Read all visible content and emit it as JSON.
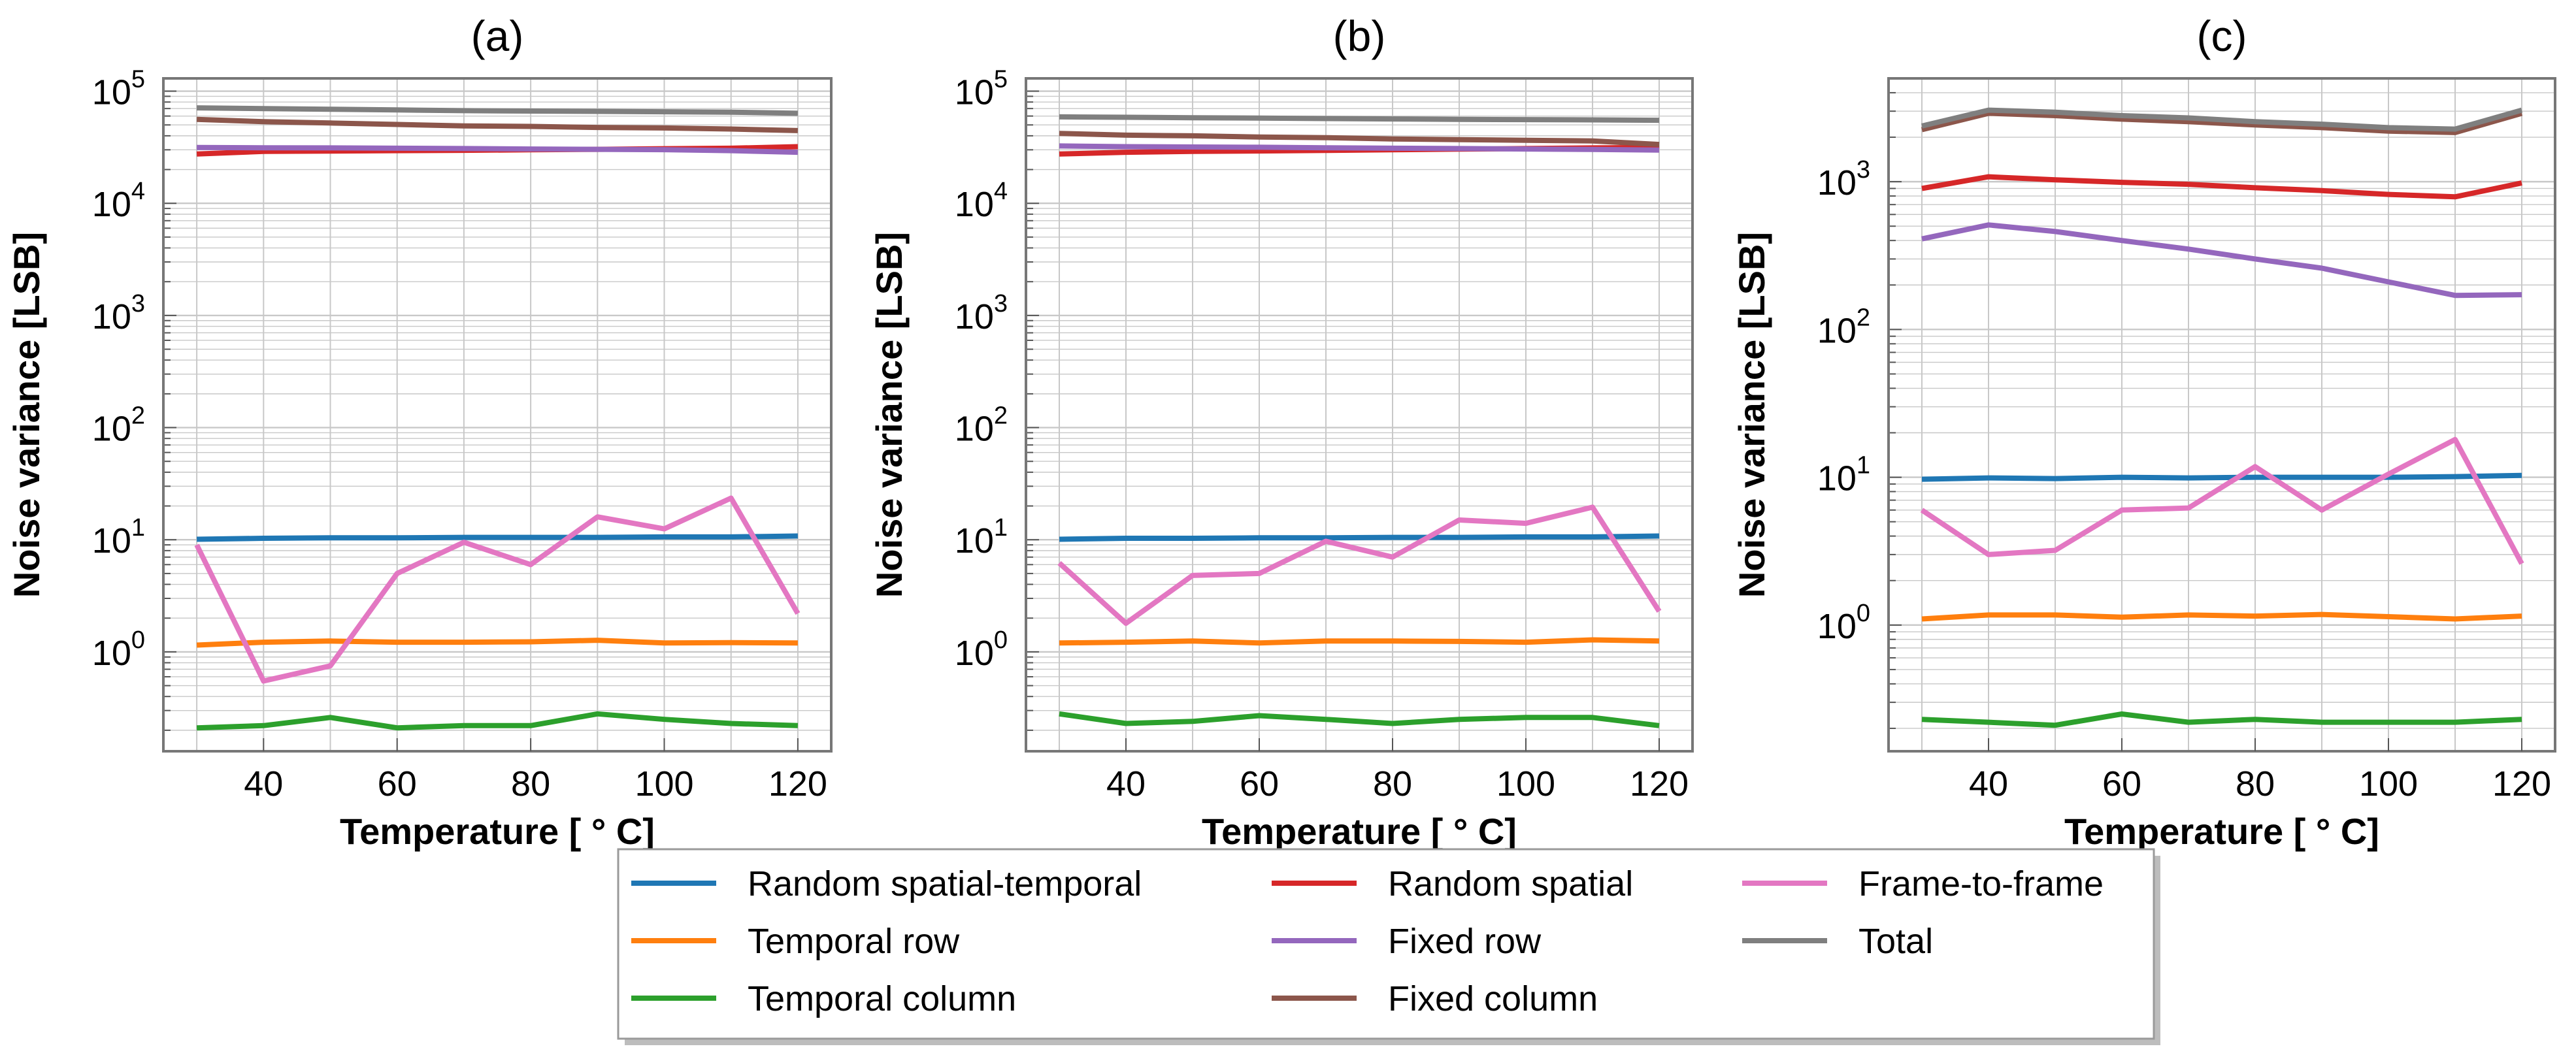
{
  "chart_data": [
    {
      "type": "line",
      "title": "(a)",
      "xlabel": "Temperature [ $^\\circ$C]",
      "xlabel_display": "Temperature [ ° C]",
      "ylabel": "Noise variance [LSB]",
      "yscale": "log",
      "xlim": [
        25,
        125
      ],
      "ylim": [
        0.13,
        130000
      ],
      "grid": true,
      "xticks": [
        40,
        60,
        80,
        100,
        120
      ],
      "yticks": [
        1,
        10,
        100,
        1000,
        10000,
        100000
      ],
      "x": [
        30,
        40,
        50,
        60,
        70,
        80,
        90,
        100,
        110,
        120
      ],
      "series": [
        {
          "name": "Random spatial-temporal",
          "values": [
            10.1,
            10.3,
            10.4,
            10.4,
            10.5,
            10.5,
            10.5,
            10.6,
            10.6,
            10.8
          ]
        },
        {
          "name": "Temporal row",
          "values": [
            1.15,
            1.22,
            1.25,
            1.22,
            1.22,
            1.23,
            1.27,
            1.2,
            1.21,
            1.2
          ]
        },
        {
          "name": "Temporal column",
          "values": [
            0.21,
            0.22,
            0.26,
            0.21,
            0.22,
            0.22,
            0.28,
            0.25,
            0.23,
            0.22
          ]
        },
        {
          "name": "Random spatial",
          "values": [
            27500,
            29000,
            29200,
            29500,
            29700,
            30000,
            30300,
            30700,
            31000,
            32000
          ]
        },
        {
          "name": "Fixed row",
          "values": [
            31500,
            31300,
            31200,
            31000,
            30800,
            30500,
            30300,
            30100,
            29500,
            28500
          ]
        },
        {
          "name": "Fixed column",
          "values": [
            56000,
            53500,
            52000,
            50500,
            49000,
            48500,
            47500,
            47000,
            46000,
            44500
          ]
        },
        {
          "name": "Frame-to-frame",
          "values": [
            9.0,
            0.55,
            0.75,
            5.0,
            9.5,
            6.0,
            16.0,
            12.5,
            23.5,
            2.2
          ]
        },
        {
          "name": "Total",
          "values": [
            71000,
            70000,
            69000,
            68000,
            67000,
            66500,
            66000,
            65500,
            65000,
            63500
          ]
        }
      ]
    },
    {
      "type": "line",
      "title": "(b)",
      "xlabel": "Temperature [ $^\\circ$C]",
      "xlabel_display": "Temperature [ ° C]",
      "ylabel": "Noise variance [LSB]",
      "yscale": "log",
      "xlim": [
        25,
        125
      ],
      "ylim": [
        0.13,
        130000
      ],
      "grid": true,
      "xticks": [
        40,
        60,
        80,
        100,
        120
      ],
      "yticks": [
        1,
        10,
        100,
        1000,
        10000,
        100000
      ],
      "x": [
        30,
        40,
        50,
        60,
        70,
        80,
        90,
        100,
        110,
        120
      ],
      "series": [
        {
          "name": "Random spatial-temporal",
          "values": [
            10.1,
            10.3,
            10.3,
            10.4,
            10.4,
            10.5,
            10.5,
            10.6,
            10.6,
            10.8
          ]
        },
        {
          "name": "Temporal row",
          "values": [
            1.2,
            1.22,
            1.25,
            1.2,
            1.25,
            1.25,
            1.24,
            1.22,
            1.28,
            1.25
          ]
        },
        {
          "name": "Temporal column",
          "values": [
            0.28,
            0.23,
            0.24,
            0.27,
            0.25,
            0.23,
            0.25,
            0.26,
            0.26,
            0.22
          ]
        },
        {
          "name": "Random spatial",
          "values": [
            27500,
            28500,
            29000,
            29300,
            29600,
            30000,
            30400,
            30800,
            31200,
            31500
          ]
        },
        {
          "name": "Fixed row",
          "values": [
            32500,
            32000,
            31800,
            31600,
            31300,
            31000,
            30800,
            30500,
            30200,
            29800
          ]
        },
        {
          "name": "Fixed column",
          "values": [
            42000,
            40500,
            40000,
            39000,
            38500,
            37500,
            37000,
            36500,
            36000,
            33500
          ]
        },
        {
          "name": "Frame-to-frame",
          "values": [
            6.2,
            1.8,
            4.8,
            5.0,
            9.7,
            7.0,
            15.0,
            14.0,
            19.5,
            2.3
          ]
        },
        {
          "name": "Total",
          "values": [
            59000,
            58500,
            58000,
            57500,
            57000,
            56500,
            56000,
            55800,
            55500,
            55000
          ]
        }
      ]
    },
    {
      "type": "line",
      "title": "(c)",
      "xlabel": "Temperature [ $^\\circ$C]",
      "xlabel_display": "Temperature [ ° C]",
      "ylabel": "Noise variance [LSB]",
      "yscale": "log",
      "xlim": [
        25,
        125
      ],
      "ylim": [
        0.14,
        5000
      ],
      "grid": true,
      "xticks": [
        40,
        60,
        80,
        100,
        120
      ],
      "yticks": [
        1,
        10,
        100,
        1000
      ],
      "x": [
        30,
        40,
        50,
        60,
        70,
        80,
        90,
        100,
        110,
        120
      ],
      "series": [
        {
          "name": "Random spatial-temporal",
          "values": [
            9.7,
            9.9,
            9.8,
            10.0,
            9.9,
            10.0,
            10.0,
            10.0,
            10.1,
            10.3
          ]
        },
        {
          "name": "Temporal row",
          "values": [
            1.1,
            1.17,
            1.17,
            1.13,
            1.17,
            1.15,
            1.18,
            1.14,
            1.1,
            1.15
          ]
        },
        {
          "name": "Temporal column",
          "values": [
            0.23,
            0.22,
            0.21,
            0.25,
            0.22,
            0.23,
            0.22,
            0.22,
            0.22,
            0.23
          ]
        },
        {
          "name": "Random spatial",
          "values": [
            900,
            1080,
            1030,
            990,
            960,
            910,
            870,
            820,
            790,
            980
          ]
        },
        {
          "name": "Fixed row",
          "values": [
            410,
            510,
            460,
            400,
            350,
            300,
            260,
            210,
            170,
            172
          ]
        },
        {
          "name": "Fixed column",
          "values": [
            2250,
            2900,
            2800,
            2650,
            2550,
            2420,
            2320,
            2200,
            2150,
            2900
          ]
        },
        {
          "name": "Frame-to-frame",
          "values": [
            6.0,
            3.0,
            3.2,
            6.0,
            6.2,
            11.8,
            6.0,
            10.5,
            18.0,
            2.6
          ]
        },
        {
          "name": "Total",
          "values": [
            2380,
            3050,
            2950,
            2800,
            2700,
            2550,
            2450,
            2320,
            2270,
            3050
          ]
        }
      ]
    }
  ],
  "legend": {
    "placement": "bottom-center",
    "entries": [
      {
        "label": "Random spatial-temporal",
        "color": "#1f77b4"
      },
      {
        "label": "Temporal row",
        "color": "#ff7f0e"
      },
      {
        "label": "Temporal column",
        "color": "#2ca02c"
      },
      {
        "label": "Random spatial",
        "color": "#d62728"
      },
      {
        "label": "Fixed row",
        "color": "#9467bd"
      },
      {
        "label": "Fixed column",
        "color": "#8c564b"
      },
      {
        "label": "Frame-to-frame",
        "color": "#e377c2"
      },
      {
        "label": "Total",
        "color": "#7f7f7f"
      }
    ]
  },
  "colors": {
    "Random spatial-temporal": "#1f77b4",
    "Temporal row": "#ff7f0e",
    "Temporal column": "#2ca02c",
    "Random spatial": "#d62728",
    "Fixed row": "#9467bd",
    "Fixed column": "#8c564b",
    "Frame-to-frame": "#e377c2",
    "Total": "#7f7f7f",
    "grid": "#c8c8c8",
    "axes": "#777777"
  }
}
